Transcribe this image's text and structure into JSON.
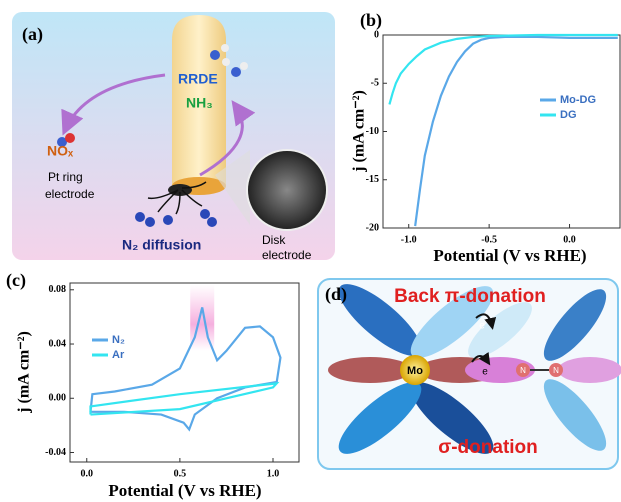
{
  "panel_a": {
    "label": "(a)",
    "rrde": "RRDE",
    "nh3": "NH₃",
    "nox": "NOₓ",
    "ring": [
      "Pt ring",
      "electrode"
    ],
    "disk": [
      "Disk",
      "electrode"
    ],
    "diffusion": "N₂ diffusion"
  },
  "chart_data": [
    {
      "type": "line",
      "title": "(b)",
      "x_label": "Potential (V vs RHE)",
      "y_label": "j (mA cm⁻²)",
      "xlim": [
        -1.16,
        0.32
      ],
      "ylim": [
        -20,
        0
      ],
      "xticks": [
        {
          "value": -1.0,
          "label": "-1.0"
        },
        -0.5,
        {
          "value": 0.0,
          "label": "0.0"
        }
      ],
      "yticks": [
        0,
        -5,
        -10,
        -15,
        -20
      ],
      "series": [
        {
          "name": "Mo-DG",
          "color": "#5aa8e8",
          "x": [
            -0.96,
            -0.93,
            -0.9,
            -0.85,
            -0.8,
            -0.75,
            -0.7,
            -0.65,
            -0.6,
            -0.55,
            -0.5,
            -0.4,
            -0.2,
            0,
            0.3
          ],
          "values": [
            -19.8,
            -16,
            -12.5,
            -9,
            -6.3,
            -4.3,
            -2.8,
            -1.7,
            -0.9,
            -0.5,
            -0.3,
            -0.2,
            -0.2,
            -0.3,
            -0.3
          ]
        },
        {
          "name": "DG",
          "color": "#33e5f0",
          "x": [
            -1.12,
            -1.1,
            -1.08,
            -1.05,
            -1.0,
            -0.95,
            -0.9,
            -0.8,
            -0.7,
            -0.6,
            -0.5,
            -0.2,
            0.3
          ],
          "values": [
            -7.2,
            -6,
            -5,
            -4,
            -3,
            -2.2,
            -1.5,
            -0.8,
            -0.4,
            -0.2,
            -0.1,
            0,
            0
          ]
        }
      ]
    },
    {
      "type": "line",
      "title": "(c)",
      "x_label": "Potential (V vs RHE)",
      "y_label": "j (mA cm⁻²)",
      "xlim": [
        -0.09,
        1.145
      ],
      "ylim": [
        -0.047,
        0.085
      ],
      "xticks": [
        {
          "value": 0.0,
          "label": "0.0"
        },
        0.5,
        {
          "value": 1.0,
          "label": "1.0"
        }
      ],
      "yticks": [
        0.08,
        0.04,
        {
          "value": 0.0,
          "label": "0.00"
        },
        -0.04
      ],
      "series": [
        {
          "name": "N₂",
          "color": "#5aa8e8",
          "x": [
            0.02,
            0.2,
            0.4,
            0.52,
            0.55,
            0.58,
            0.7,
            0.85,
            1.02,
            1.04,
            1.0,
            0.93,
            0.85,
            0.75,
            0.7,
            0.65,
            0.62,
            0.58,
            0.5,
            0.35,
            0.15,
            0.03,
            0.02
          ],
          "values": [
            -0.01,
            -0.01,
            -0.012,
            -0.018,
            -0.023,
            -0.012,
            0.0,
            0.008,
            0.012,
            0.03,
            0.045,
            0.053,
            0.052,
            0.035,
            0.028,
            0.045,
            0.067,
            0.045,
            0.022,
            0.01,
            0.005,
            0.003,
            -0.01
          ]
        },
        {
          "name": "Ar",
          "color": "#33e5f0",
          "x": [
            0.02,
            0.5,
            1.0,
            1.02,
            0.5,
            0.02,
            0.02
          ],
          "values": [
            -0.012,
            -0.008,
            0.008,
            0.011,
            0.003,
            -0.006,
            -0.012
          ]
        }
      ]
    }
  ],
  "panel_d": {
    "label": "(d)",
    "back": "Back π-donation",
    "sigma": "σ-donation",
    "mo": "Mo",
    "e1": "e",
    "e2": "e",
    "n1": "N",
    "n2": "N"
  }
}
